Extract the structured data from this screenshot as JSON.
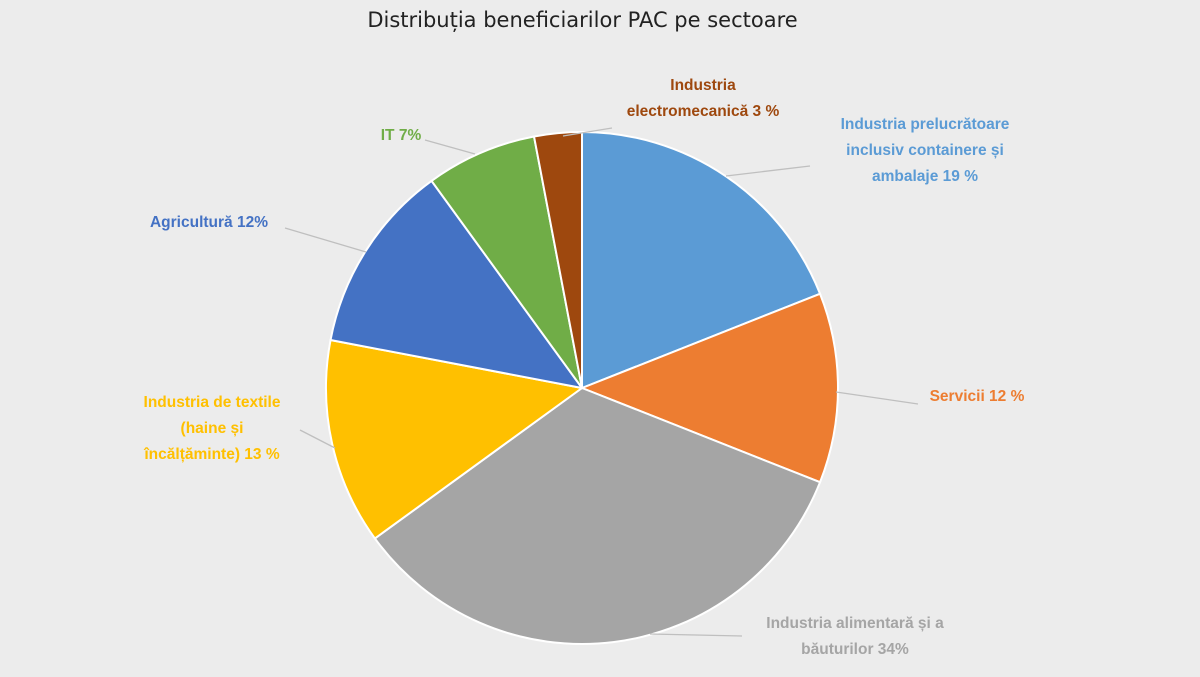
{
  "chart_data": {
    "type": "pie",
    "title": "Distribuția beneficiarilor PAC pe sectoare",
    "slices": [
      {
        "name": "Industria prelucrătoare inclusiv containere și ambalaje",
        "value": 19,
        "color": "#5b9bd5",
        "label_lines": [
          "Industria prelucrătoare",
          "inclusiv containere și",
          "ambalaje 19 %"
        ]
      },
      {
        "name": "Servicii",
        "value": 12,
        "color": "#ed7d31",
        "label_lines": [
          "Servicii 12 %"
        ]
      },
      {
        "name": "Industria alimentară și a băuturilor",
        "value": 34,
        "color": "#a5a5a5",
        "label_lines": [
          "Industria alimentară și a",
          "băuturilor 34%"
        ]
      },
      {
        "name": "Industria de textile (haine și încălțăminte)",
        "value": 13,
        "color": "#ffc000",
        "label_lines": [
          "Industria de textile",
          "(haine și",
          "încălțăminte) 13 %"
        ]
      },
      {
        "name": "Agricultură",
        "value": 12,
        "color": "#4472c4",
        "label_lines": [
          "Agricultură 12%"
        ]
      },
      {
        "name": "IT",
        "value": 7,
        "color": "#70ad47",
        "label_lines": [
          "IT 7%"
        ]
      },
      {
        "name": "Industria electromecanică",
        "value": 3,
        "color": "#9e480e",
        "label_lines": [
          "Industria",
          "electromecanică 3 %"
        ]
      }
    ]
  }
}
